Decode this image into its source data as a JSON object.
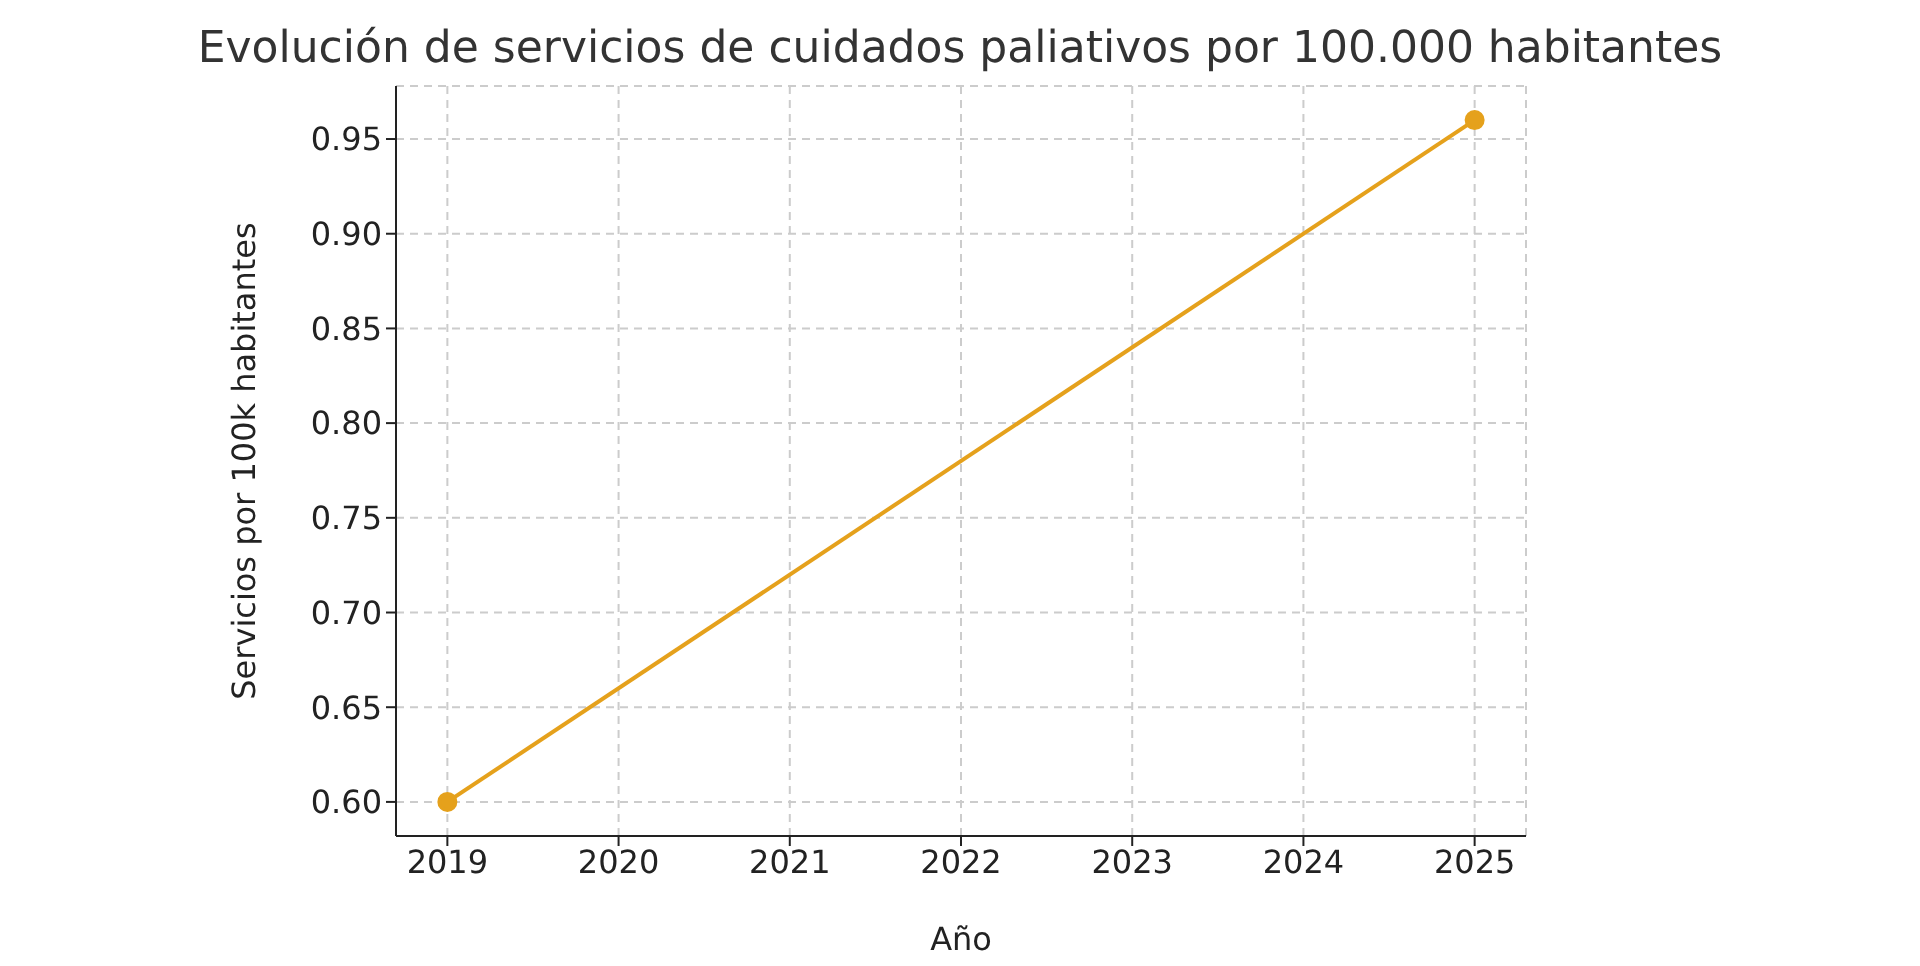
{
  "chart_data": {
    "type": "line",
    "title": "Evolución de servicios de cuidados paliativos por 100.000 habitantes",
    "xlabel": "Año",
    "ylabel": "Servicios por 100k habitantes",
    "x": [
      2019,
      2025
    ],
    "series": [
      {
        "color": "#e5a11c",
        "values": [
          0.6,
          0.96
        ]
      }
    ],
    "xlim": [
      2018.7,
      2025.3
    ],
    "xticks": [
      2019,
      2020,
      2021,
      2022,
      2023,
      2024,
      2025
    ],
    "ylim": [
      0.582,
      0.978
    ],
    "yticks": [
      {
        "value": 0.6,
        "label": "0.60"
      },
      {
        "value": 0.65,
        "label": "0.65"
      },
      {
        "value": 0.7,
        "label": "0.70"
      },
      {
        "value": 0.75,
        "label": "0.75"
      },
      {
        "value": 0.8,
        "label": "0.80"
      },
      {
        "value": 0.85,
        "label": "0.85"
      },
      {
        "value": 0.9,
        "label": "0.90"
      },
      {
        "value": 0.95,
        "label": "0.95"
      }
    ],
    "grid": true,
    "marker": "circle",
    "line_style": "solid",
    "legend": false
  }
}
